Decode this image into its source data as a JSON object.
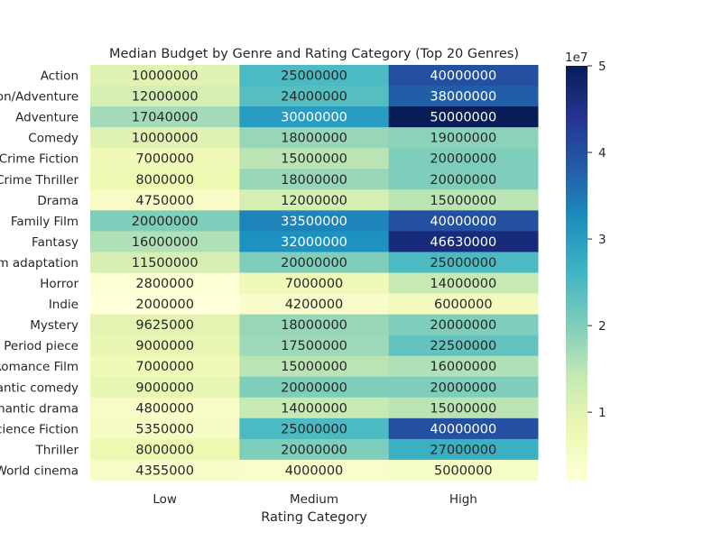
{
  "chart_data": {
    "type": "heatmap",
    "title": "Median Budget by Genre and Rating Category (Top 20 Genres)",
    "xlabel": "Rating Category",
    "ylabel": "",
    "x_categories": [
      "Low",
      "Medium",
      "High"
    ],
    "y_categories": [
      "Action",
      "Action/Adventure",
      "Adventure",
      "Comedy",
      "Crime Fiction",
      "Crime Thriller",
      "Drama",
      "Family Film",
      "Fantasy",
      "Film adaptation",
      "Horror",
      "Indie",
      "Mystery",
      "Period piece",
      "Romance Film",
      "Romantic comedy",
      "Romantic drama",
      "Science Fiction",
      "Thriller",
      "World cinema"
    ],
    "values": [
      [
        10000000,
        25000000,
        40000000
      ],
      [
        12000000,
        24000000,
        38000000
      ],
      [
        17040000,
        30000000,
        50000000
      ],
      [
        10000000,
        18000000,
        19000000
      ],
      [
        7000000,
        15000000,
        20000000
      ],
      [
        8000000,
        18000000,
        20000000
      ],
      [
        4750000,
        12000000,
        15000000
      ],
      [
        20000000,
        33500000,
        40000000
      ],
      [
        16000000,
        32000000,
        46630000
      ],
      [
        11500000,
        20000000,
        25000000
      ],
      [
        2800000,
        7000000,
        14000000
      ],
      [
        2000000,
        4200000,
        6000000
      ],
      [
        9625000,
        18000000,
        20000000
      ],
      [
        9000000,
        17500000,
        22500000
      ],
      [
        7000000,
        15000000,
        16000000
      ],
      [
        9000000,
        20000000,
        20000000
      ],
      [
        4800000,
        14000000,
        15000000
      ],
      [
        5350000,
        25000000,
        40000000
      ],
      [
        8000000,
        20000000,
        27000000
      ],
      [
        4355000,
        4000000,
        5000000
      ]
    ],
    "colormap": "YlGnBu",
    "vmin": 2000000,
    "vmax": 50000000,
    "colorbar": {
      "ticks": [
        1,
        2,
        3,
        4,
        5
      ],
      "tick_labels": [
        "1",
        "2",
        "3",
        "4",
        "5"
      ],
      "exponent_label": "1e7"
    }
  }
}
